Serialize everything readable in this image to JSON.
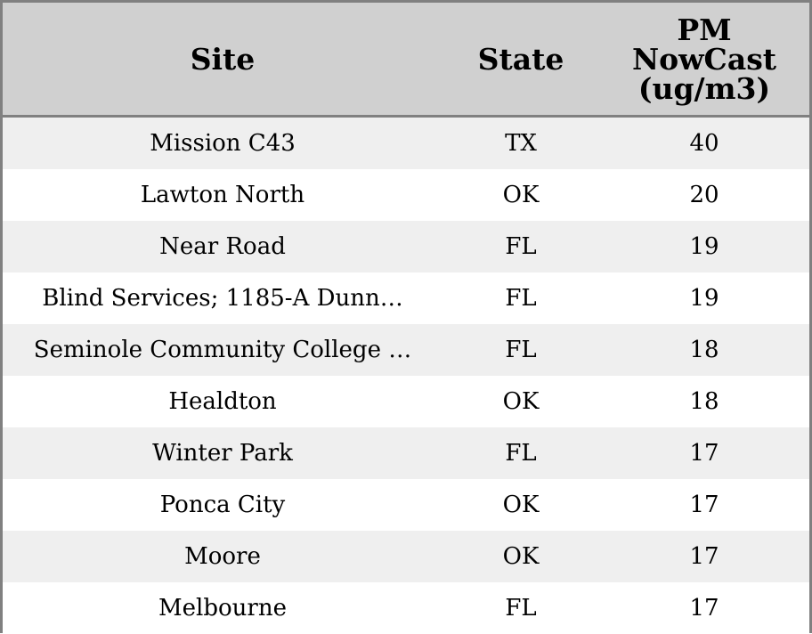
{
  "chart_data": {
    "type": "table",
    "columns": [
      "Site",
      "State",
      "PM\nNowCast\n(ug/m3)"
    ],
    "rows": [
      [
        "Mission C43",
        "TX",
        "40"
      ],
      [
        "Lawton North",
        "OK",
        "20"
      ],
      [
        "Near Road",
        "FL",
        "19"
      ],
      [
        "Blind Services; 1185-A Dunn…",
        "FL",
        "19"
      ],
      [
        "Seminole Community College …",
        "FL",
        "18"
      ],
      [
        "Healdton",
        "OK",
        "18"
      ],
      [
        "Winter Park",
        "FL",
        "17"
      ],
      [
        "Ponca City",
        "OK",
        "17"
      ],
      [
        "Moore",
        "OK",
        "17"
      ],
      [
        "Melbourne",
        "FL",
        "17"
      ]
    ]
  },
  "colors": {
    "header_background": "#d0d0d0",
    "border": "#808080",
    "row_stripe": "#efefef",
    "row_plain": "#ffffff"
  }
}
